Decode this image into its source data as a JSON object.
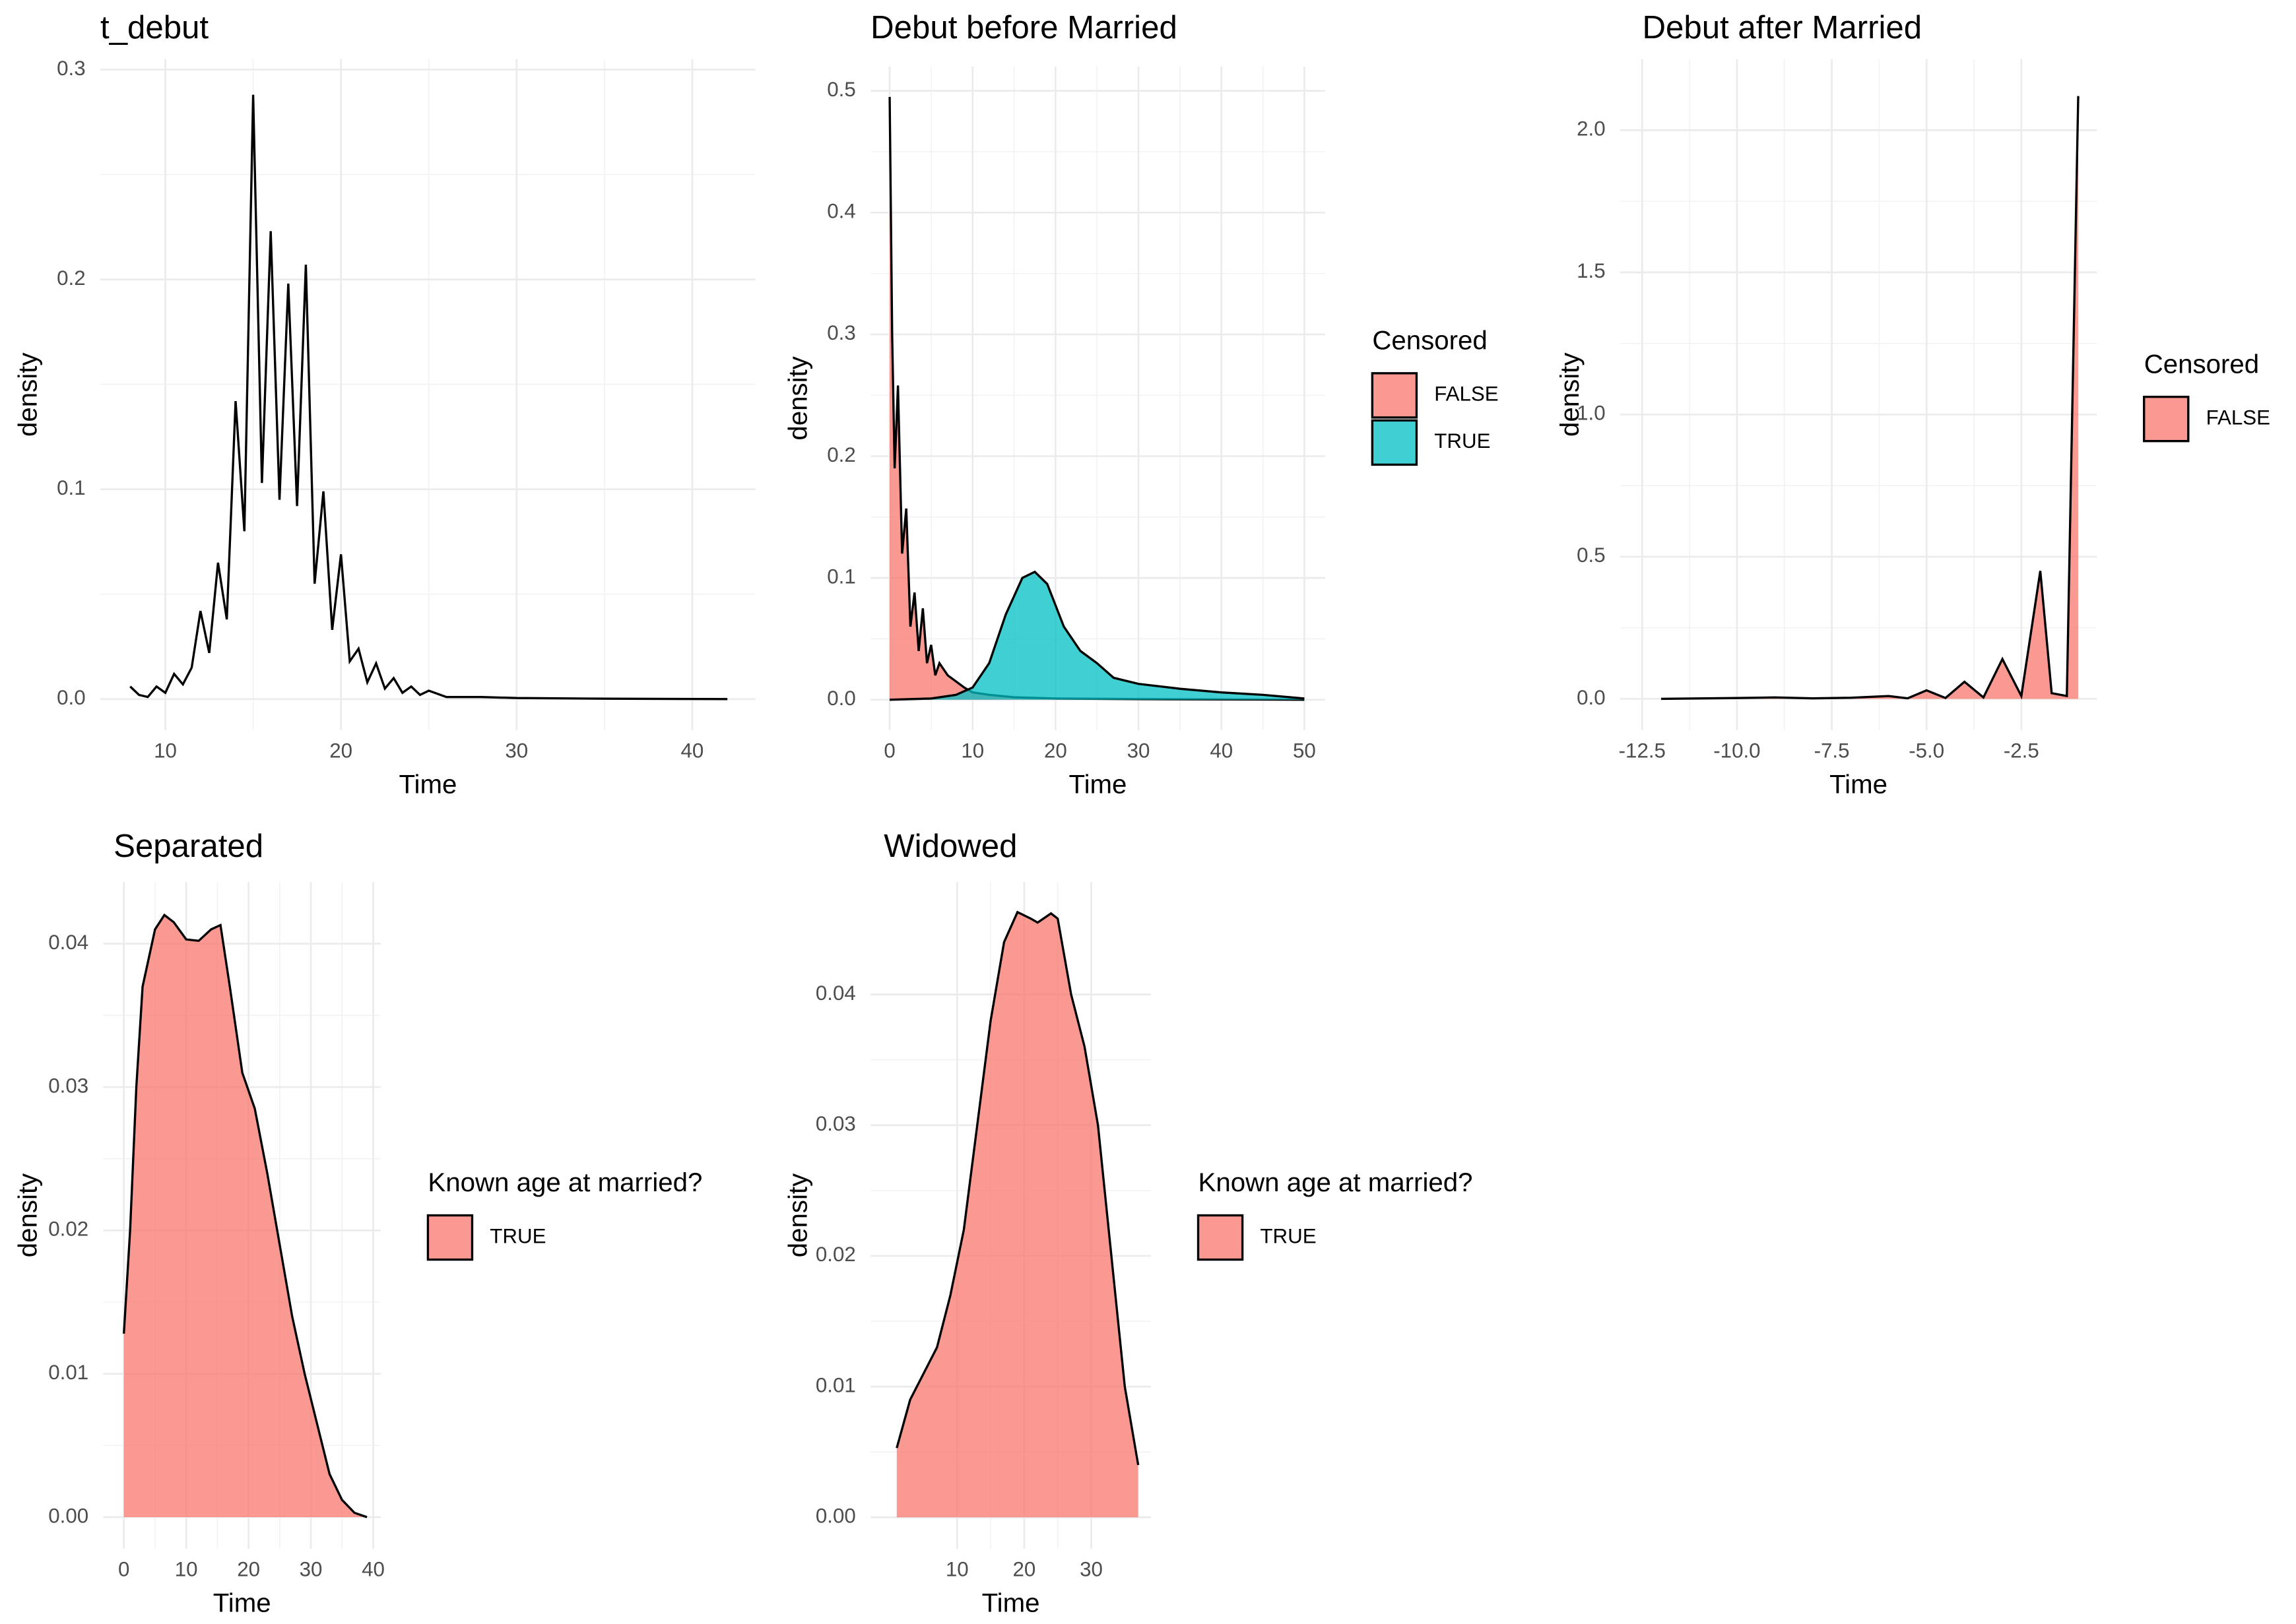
{
  "chart_data": [
    {
      "type": "line",
      "title": "t_debut",
      "xlabel": "Time",
      "ylabel": "density",
      "color": "#000000",
      "x": [
        8,
        8.5,
        9,
        9.5,
        10,
        10.5,
        11,
        11.5,
        12,
        12.5,
        13,
        13.5,
        14,
        14.5,
        15,
        15.5,
        16,
        16.5,
        17,
        17.5,
        18,
        18.5,
        19,
        19.5,
        20,
        20.5,
        21,
        21.5,
        22,
        22.5,
        23,
        23.5,
        24,
        24.5,
        25,
        26,
        27,
        28,
        30,
        35,
        42
      ],
      "values": [
        0.006,
        0.002,
        0.001,
        0.006,
        0.003,
        0.012,
        0.007,
        0.015,
        0.042,
        0.022,
        0.065,
        0.038,
        0.142,
        0.08,
        0.288,
        0.103,
        0.223,
        0.095,
        0.198,
        0.092,
        0.207,
        0.055,
        0.099,
        0.033,
        0.069,
        0.018,
        0.024,
        0.008,
        0.017,
        0.005,
        0.01,
        0.003,
        0.006,
        0.002,
        0.004,
        0.001,
        0.001,
        0.001,
        0.0005,
        0.0002,
        0
      ],
      "xlim": [
        6.3,
        43.6
      ],
      "xticks": [
        10,
        20,
        30,
        40
      ],
      "ylim": [
        -0.0148,
        0.305
      ],
      "yticks": [
        {
          "value": 0,
          "label": "0.0"
        },
        0.1,
        0.2,
        0.3
      ],
      "grid": true
    },
    {
      "type": "area",
      "title": "Debut before Married",
      "xlabel": "Time",
      "ylabel": "density",
      "legend_title": "Censored",
      "series": [
        {
          "name": "FALSE",
          "color": "#F8766D",
          "x": [
            0,
            0.3,
            0.6,
            1,
            1.5,
            2,
            2.5,
            3,
            3.5,
            4,
            4.5,
            5,
            5.5,
            6,
            7,
            8,
            9,
            10,
            12,
            15,
            20,
            30,
            50
          ],
          "values": [
            0.495,
            0.3,
            0.19,
            0.258,
            0.12,
            0.157,
            0.06,
            0.088,
            0.04,
            0.075,
            0.03,
            0.045,
            0.02,
            0.03,
            0.02,
            0.015,
            0.01,
            0.006,
            0.004,
            0.002,
            0.001,
            0.0005,
            0
          ]
        },
        {
          "name": "TRUE",
          "color": "#00BFC4",
          "x": [
            0,
            5,
            8,
            10,
            12,
            14,
            16,
            17.5,
            19,
            21,
            23,
            25,
            27,
            30,
            35,
            40,
            45,
            50
          ],
          "values": [
            0,
            0.001,
            0.004,
            0.01,
            0.03,
            0.07,
            0.1,
            0.105,
            0.095,
            0.06,
            0.04,
            0.03,
            0.018,
            0.013,
            0.009,
            0.006,
            0.004,
            0.001
          ]
        }
      ],
      "xlim": [
        -2.3,
        52.5
      ],
      "xticks": [
        0,
        10,
        20,
        30,
        40,
        50
      ],
      "ylim": [
        -0.025,
        0.52
      ],
      "yticks": [
        {
          "value": 0,
          "label": "0.0"
        },
        0.1,
        0.2,
        0.3,
        0.4,
        0.5
      ],
      "grid": true
    },
    {
      "type": "area",
      "title": "Debut after Married",
      "xlabel": "Time",
      "ylabel": "density",
      "legend_title": "Censored",
      "series": [
        {
          "name": "FALSE",
          "color": "#F8766D",
          "x": [
            -12,
            -10,
            -9,
            -8,
            -7,
            -6,
            -5.5,
            -5,
            -4.5,
            -4,
            -3.5,
            -3,
            -2.5,
            -2,
            -1.7,
            -1.3,
            -1
          ],
          "values": [
            0,
            0.003,
            0.005,
            0.002,
            0.004,
            0.01,
            0.002,
            0.03,
            0.003,
            0.06,
            0.005,
            0.14,
            0.01,
            0.45,
            0.02,
            0.01,
            2.12
          ]
        }
      ],
      "xlim": [
        -13.08,
        -0.51
      ],
      "xticks": [
        -12.5,
        {
          "value": -10,
          "label": "-10.0"
        },
        -7.5,
        {
          "value": -5,
          "label": "-5.0"
        },
        -2.5
      ],
      "ylim": [
        -0.11,
        2.25
      ],
      "yticks": [
        {
          "value": 0,
          "label": "0.0"
        },
        0.5,
        {
          "value": 1,
          "label": "1.0"
        },
        1.5,
        {
          "value": 2,
          "label": "2.0"
        }
      ],
      "grid": true
    },
    {
      "type": "area",
      "title": "Separated",
      "xlabel": "Time",
      "ylabel": "density",
      "legend_title": "Known age at married?",
      "series": [
        {
          "name": "TRUE",
          "color": "#F8766D",
          "x": [
            0,
            1,
            2,
            3,
            5,
            6.5,
            8,
            10,
            12,
            14,
            15.5,
            17,
            19,
            21,
            23,
            25,
            27,
            29,
            31,
            33,
            35,
            37,
            39
          ],
          "values": [
            0.0128,
            0.02,
            0.03,
            0.037,
            0.041,
            0.042,
            0.0415,
            0.0403,
            0.0402,
            0.041,
            0.0413,
            0.037,
            0.031,
            0.0285,
            0.024,
            0.019,
            0.014,
            0.01,
            0.0065,
            0.003,
            0.0012,
            0.0003,
            0
          ]
        }
      ],
      "xlim": [
        -3.3,
        41.2
      ],
      "xticks": [
        0,
        10,
        20,
        30,
        40
      ],
      "ylim": [
        -0.0022,
        0.0443
      ],
      "yticks": [
        {
          "value": 0,
          "label": "0.00"
        },
        {
          "value": 0.01,
          "label": "0.01"
        },
        {
          "value": 0.02,
          "label": "0.02"
        },
        {
          "value": 0.03,
          "label": "0.03"
        },
        {
          "value": 0.04,
          "label": "0.04"
        }
      ],
      "grid": true
    },
    {
      "type": "area",
      "title": "Widowed",
      "xlabel": "Time",
      "ylabel": "density",
      "legend_title": "Known age at married?",
      "series": [
        {
          "name": "TRUE",
          "color": "#F8766D",
          "x": [
            1,
            3,
            5,
            7,
            9,
            11,
            13,
            15,
            17,
            19,
            21,
            22,
            24,
            25,
            27,
            29,
            31,
            33,
            35,
            37
          ],
          "values": [
            0.0053,
            0.009,
            0.011,
            0.013,
            0.017,
            0.022,
            0.03,
            0.038,
            0.044,
            0.0463,
            0.0458,
            0.0455,
            0.0462,
            0.0458,
            0.04,
            0.036,
            0.03,
            0.02,
            0.01,
            0.004
          ]
        }
      ],
      "xlim": [
        -2.9,
        38.9
      ],
      "xticks": [
        {
          "value": 10,
          "label": "10"
        },
        20,
        30
      ],
      "ylim": [
        -0.0024,
        0.0486
      ],
      "yticks": [
        {
          "value": 0,
          "label": "0.00"
        },
        {
          "value": 0.01,
          "label": "0.01"
        },
        {
          "value": 0.02,
          "label": "0.02"
        },
        {
          "value": 0.03,
          "label": "0.03"
        },
        {
          "value": 0.04,
          "label": "0.04"
        }
      ],
      "grid": true
    }
  ]
}
